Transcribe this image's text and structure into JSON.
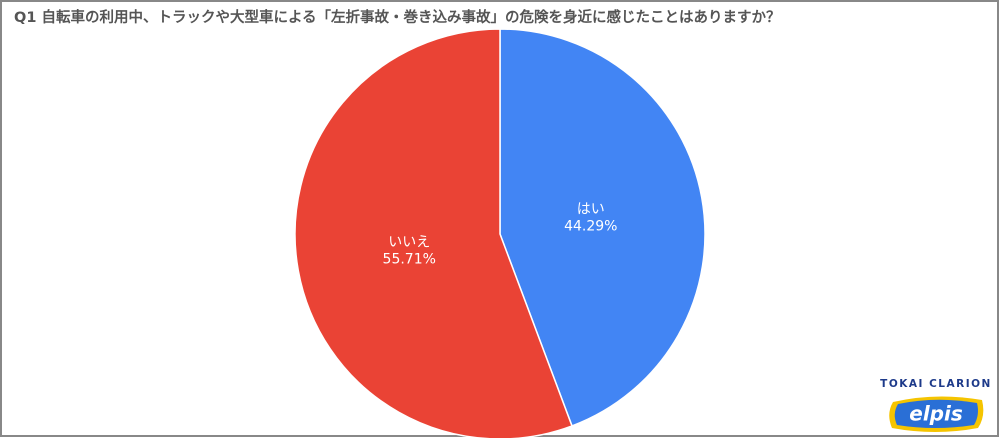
{
  "chart_data": {
    "type": "pie",
    "title": "Q1 自転車の利用中、トラックや大型車による「左折事故・巻き込み事故」の危険を身近に感じたことはありますか？",
    "categories": [
      "はい",
      "いいえ"
    ],
    "values": [
      44.29,
      55.71
    ],
    "value_labels": [
      "44.29%",
      "55.71%"
    ],
    "colors": [
      "#4285f4",
      "#ea4335"
    ]
  },
  "logo": {
    "company": "TOKAI CLARION",
    "brand": "elpis"
  }
}
